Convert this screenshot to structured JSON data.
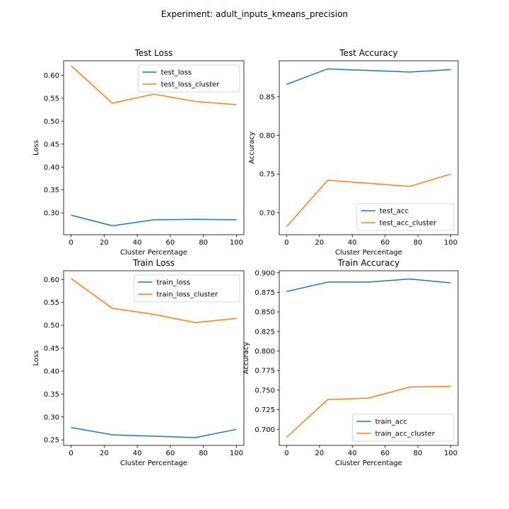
{
  "figure": {
    "suptitle": "Experiment: adult_inputs_kmeans_precision"
  },
  "colors": {
    "series_1": "#1f77b4",
    "series_2": "#ff7f0e",
    "axes": "#000000",
    "background": "#ffffff"
  },
  "chart_data": [
    {
      "type": "line",
      "title": "Test Loss",
      "xlabel": "Cluster Percentage",
      "ylabel": "Loss",
      "x": [
        0,
        25,
        50,
        75,
        100
      ],
      "xlim": [
        -4.5,
        104.5
      ],
      "ylim": [
        0.2525,
        0.6315
      ],
      "xticks": [
        0,
        20,
        40,
        60,
        80,
        100
      ],
      "yticks": [
        0.3,
        0.35,
        0.4,
        0.45,
        0.5,
        0.55,
        0.6
      ],
      "ytick_decimals": 2,
      "legend": "upper right",
      "grid": false,
      "series": [
        {
          "name": "test_loss",
          "values": [
            0.295,
            0.272,
            0.285,
            0.286,
            0.285
          ]
        },
        {
          "name": "test_loss_cluster",
          "values": [
            0.621,
            0.539,
            0.559,
            0.543,
            0.536
          ]
        }
      ]
    },
    {
      "type": "line",
      "title": "Test Accuracy",
      "xlabel": "Cluster Percentage",
      "ylabel": "Accuracy",
      "x": [
        0,
        25,
        50,
        75,
        100
      ],
      "xlim": [
        -4.5,
        104.5
      ],
      "ylim": [
        0.6715,
        0.8965
      ],
      "xticks": [
        0,
        20,
        40,
        60,
        80,
        100
      ],
      "yticks": [
        0.7,
        0.75,
        0.8,
        0.85
      ],
      "ytick_decimals": 2,
      "legend": "lower right",
      "grid": false,
      "series": [
        {
          "name": "test_acc",
          "values": [
            0.866,
            0.886,
            0.884,
            0.882,
            0.885
          ]
        },
        {
          "name": "test_acc_cluster",
          "values": [
            0.682,
            0.742,
            0.738,
            0.734,
            0.75
          ]
        }
      ]
    },
    {
      "type": "line",
      "title": "Train Loss",
      "xlabel": "Cluster Percentage",
      "ylabel": "Loss",
      "x": [
        0,
        25,
        50,
        75,
        100
      ],
      "xlim": [
        -4.5,
        104.5
      ],
      "ylim": [
        0.238,
        0.619
      ],
      "xticks": [
        0,
        20,
        40,
        60,
        80,
        100
      ],
      "yticks": [
        0.25,
        0.3,
        0.35,
        0.4,
        0.45,
        0.5,
        0.55,
        0.6
      ],
      "ytick_decimals": 2,
      "legend": "upper right",
      "grid": false,
      "series": [
        {
          "name": "train_loss",
          "values": [
            0.277,
            0.261,
            0.258,
            0.255,
            0.273
          ]
        },
        {
          "name": "train_loss_cluster",
          "values": [
            0.602,
            0.537,
            0.524,
            0.506,
            0.515
          ]
        }
      ]
    },
    {
      "type": "line",
      "title": "Train Accuracy",
      "xlabel": "Cluster Percentage",
      "ylabel": "Accuracy",
      "x": [
        0,
        25,
        50,
        75,
        100
      ],
      "xlim": [
        -4.5,
        104.5
      ],
      "ylim": [
        0.6795,
        0.9025
      ],
      "xticks": [
        0,
        20,
        40,
        60,
        80,
        100
      ],
      "yticks": [
        0.7,
        0.725,
        0.75,
        0.775,
        0.8,
        0.825,
        0.85,
        0.875,
        0.9
      ],
      "ytick_decimals": 3,
      "legend": "lower right",
      "grid": false,
      "series": [
        {
          "name": "train_acc",
          "values": [
            0.876,
            0.888,
            0.888,
            0.892,
            0.887
          ]
        },
        {
          "name": "train_acc_cluster",
          "values": [
            0.69,
            0.738,
            0.74,
            0.754,
            0.755
          ]
        }
      ]
    }
  ]
}
